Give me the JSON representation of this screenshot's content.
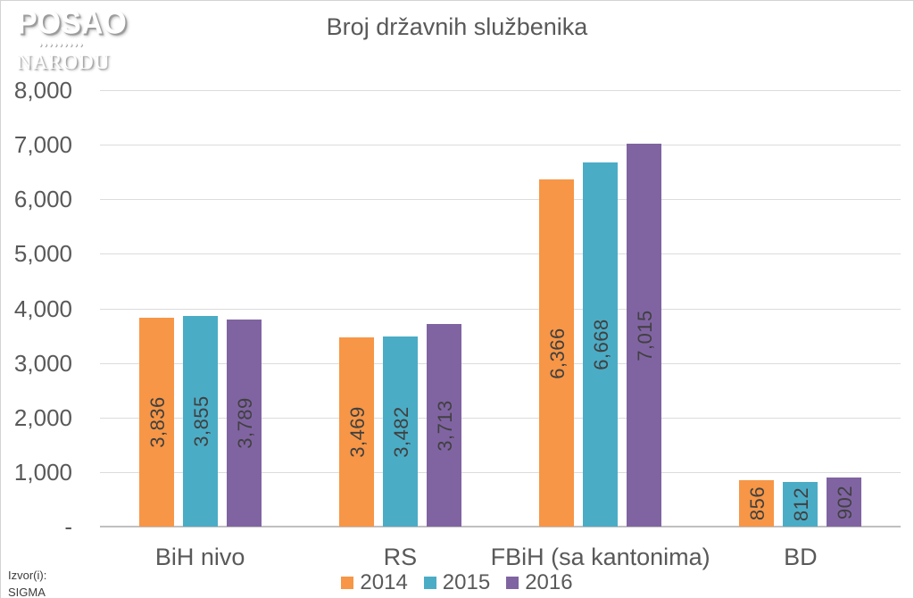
{
  "page": {
    "logo": {
      "line1": "POSAO",
      "marks": "›››››››››",
      "line2": "NARODU"
    },
    "source_label": "Izvor(i):",
    "source_value": "SIGMA"
  },
  "chart_data": {
    "type": "bar",
    "title": "Broj državnih službenika",
    "categories": [
      "BiH nivo",
      "RS",
      "FBiH (sa kantonima)",
      "BD"
    ],
    "series": [
      {
        "name": "2014",
        "color": "#F79646",
        "values": [
          3836,
          3469,
          6366,
          856
        ]
      },
      {
        "name": "2015",
        "color": "#4BACC6",
        "values": [
          3855,
          3482,
          6668,
          812
        ]
      },
      {
        "name": "2016",
        "color": "#8064A2",
        "values": [
          3789,
          3713,
          7015,
          902
        ]
      }
    ],
    "xlabel": "",
    "ylabel": "",
    "ylim": [
      0,
      8000
    ],
    "ytick_interval": 1000,
    "ytick_labels": [
      "-",
      "1,000",
      "2,000",
      "3,000",
      "4,000",
      "5,000",
      "6,000",
      "7,000",
      "8,000"
    ],
    "grid": true,
    "legend_position": "bottom",
    "value_labels": "rotated-90-inside-center",
    "text_color": "#595959",
    "value_label_color": "#404040",
    "gridline_color": "#dcdcdc"
  }
}
